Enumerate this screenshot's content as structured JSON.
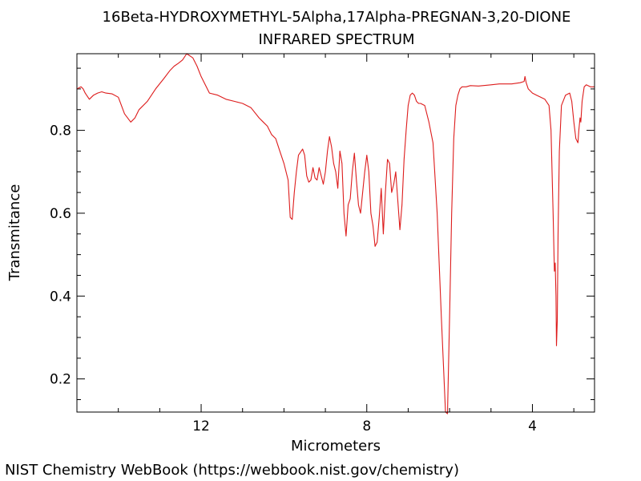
{
  "footer": "NIST Chemistry WebBook (https://webbook.nist.gov/chemistry)",
  "chart_data": {
    "type": "line",
    "title": "16Beta-HYDROXYMETHYL-5Alpha,17Alpha-PREGNAN-3,20-DIONE",
    "subtitle": "INFRARED SPECTRUM",
    "xlabel": "Micrometers",
    "ylabel": "Transmitance",
    "xlim": [
      15.0,
      2.5
    ],
    "ylim": [
      0.12,
      0.985
    ],
    "x_reversed": true,
    "x_ticks": [
      12,
      8,
      4
    ],
    "y_ticks": [
      0.2,
      0.4,
      0.6,
      0.8
    ],
    "grid": false,
    "line_color": "#dd1c1c",
    "series": [
      {
        "x": [
          15.0,
          14.9,
          14.85,
          14.8,
          14.7,
          14.6,
          14.5,
          14.4,
          14.3,
          14.15,
          14.0,
          13.85,
          13.7,
          13.6,
          13.5,
          13.3,
          13.1,
          12.9,
          12.75,
          12.65,
          12.55,
          12.45,
          12.35,
          12.2,
          12.1,
          12.0,
          11.8,
          11.6,
          11.4,
          11.2,
          11.0,
          10.8,
          10.6,
          10.5,
          10.4,
          10.3,
          10.2,
          10.1,
          10.0,
          9.9,
          9.85,
          9.8,
          9.75,
          9.7,
          9.65,
          9.55,
          9.5,
          9.45,
          9.4,
          9.35,
          9.3,
          9.25,
          9.2,
          9.15,
          9.1,
          9.05,
          9.0,
          8.95,
          8.9,
          8.85,
          8.8,
          8.75,
          8.7,
          8.65,
          8.6,
          8.55,
          8.5,
          8.45,
          8.4,
          8.35,
          8.3,
          8.25,
          8.2,
          8.15,
          8.1,
          8.05,
          8.0,
          7.95,
          7.9,
          7.85,
          7.8,
          7.75,
          7.7,
          7.65,
          7.6,
          7.55,
          7.5,
          7.45,
          7.4,
          7.35,
          7.3,
          7.25,
          7.2,
          7.15,
          7.1,
          7.05,
          7.0,
          6.95,
          6.9,
          6.85,
          6.8,
          6.75,
          6.7,
          6.6,
          6.5,
          6.4,
          6.3,
          6.2,
          6.1,
          6.05,
          6.0,
          5.95,
          5.9,
          5.85,
          5.8,
          5.75,
          5.7,
          5.6,
          5.5,
          5.3,
          5.0,
          4.8,
          4.5,
          4.3,
          4.2,
          4.18,
          4.15,
          4.1,
          4.0,
          3.9,
          3.8,
          3.7,
          3.6,
          3.55,
          3.5,
          3.47,
          3.45,
          3.43,
          3.42,
          3.4,
          3.38,
          3.35,
          3.3,
          3.2,
          3.1,
          3.05,
          3.0,
          2.95,
          2.9,
          2.88,
          2.85,
          2.83,
          2.8,
          2.75,
          2.7,
          2.6,
          2.5
        ],
        "y": [
          0.9,
          0.905,
          0.9,
          0.89,
          0.875,
          0.885,
          0.89,
          0.893,
          0.89,
          0.888,
          0.88,
          0.84,
          0.82,
          0.83,
          0.85,
          0.87,
          0.9,
          0.925,
          0.945,
          0.955,
          0.962,
          0.97,
          0.985,
          0.975,
          0.955,
          0.93,
          0.89,
          0.885,
          0.875,
          0.87,
          0.865,
          0.855,
          0.83,
          0.82,
          0.81,
          0.79,
          0.78,
          0.75,
          0.72,
          0.68,
          0.59,
          0.585,
          0.65,
          0.7,
          0.74,
          0.755,
          0.74,
          0.69,
          0.675,
          0.68,
          0.71,
          0.685,
          0.68,
          0.71,
          0.69,
          0.67,
          0.7,
          0.75,
          0.785,
          0.76,
          0.72,
          0.7,
          0.66,
          0.75,
          0.72,
          0.6,
          0.545,
          0.62,
          0.635,
          0.7,
          0.745,
          0.68,
          0.62,
          0.6,
          0.65,
          0.7,
          0.74,
          0.7,
          0.6,
          0.57,
          0.52,
          0.53,
          0.59,
          0.66,
          0.55,
          0.65,
          0.73,
          0.72,
          0.65,
          0.67,
          0.7,
          0.63,
          0.56,
          0.62,
          0.73,
          0.8,
          0.86,
          0.885,
          0.89,
          0.885,
          0.87,
          0.865,
          0.865,
          0.86,
          0.82,
          0.77,
          0.6,
          0.35,
          0.12,
          0.11,
          0.35,
          0.6,
          0.78,
          0.86,
          0.885,
          0.9,
          0.905,
          0.905,
          0.908,
          0.907,
          0.91,
          0.912,
          0.912,
          0.915,
          0.918,
          0.93,
          0.915,
          0.9,
          0.89,
          0.885,
          0.88,
          0.875,
          0.86,
          0.8,
          0.6,
          0.46,
          0.48,
          0.4,
          0.28,
          0.34,
          0.55,
          0.75,
          0.86,
          0.885,
          0.89,
          0.87,
          0.82,
          0.78,
          0.77,
          0.8,
          0.83,
          0.82,
          0.87,
          0.905,
          0.91,
          0.905,
          0.905
        ]
      }
    ]
  }
}
